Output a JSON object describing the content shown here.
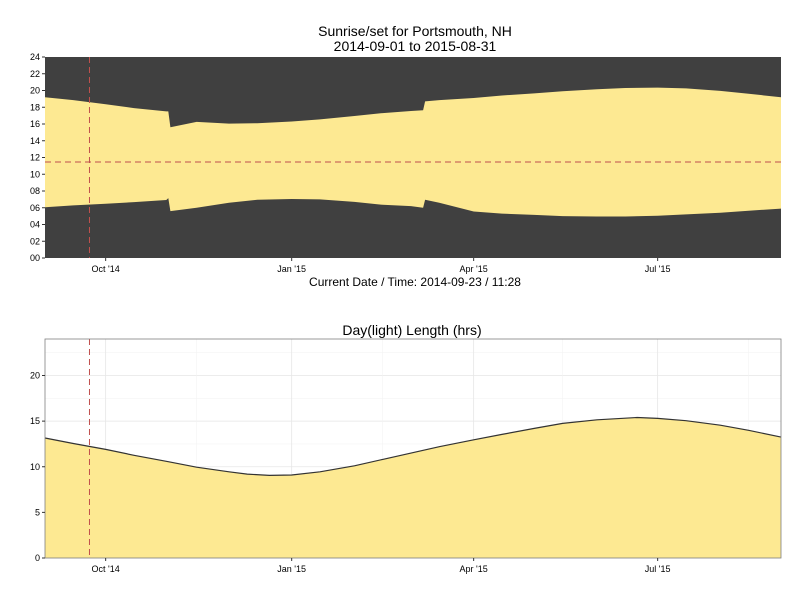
{
  "chart_data": [
    {
      "type": "area",
      "title": "Sunrise/set for Portsmouth, NH",
      "subtitle": "2014-09-01 to 2015-08-31",
      "xlabel": "Current Date / Time: 2014-09-23 / 11:28",
      "ylabel": "",
      "xlim": [
        "2014-09-01",
        "2015-08-31"
      ],
      "ylim": [
        0,
        24
      ],
      "y_ticks": [
        "00",
        "02",
        "04",
        "06",
        "08",
        "10",
        "12",
        "14",
        "16",
        "18",
        "20",
        "22",
        "24"
      ],
      "x_ticks": [
        {
          "date": "2014-10-01",
          "label": "Oct '14"
        },
        {
          "date": "2015-01-01",
          "label": "Jan '15"
        },
        {
          "date": "2015-04-01",
          "label": "Apr '15"
        },
        {
          "date": "2015-07-01",
          "label": "Jul '15"
        }
      ],
      "current_date": "2014-09-23",
      "current_time_hours": 11.47,
      "colors": {
        "night": "#404040",
        "day": "#fde992",
        "marker": "#c0504d"
      },
      "series": [
        {
          "x": [
            "2014-09-01",
            "2014-09-15",
            "2014-10-01",
            "2014-10-15",
            "2014-10-31",
            "2014-11-01",
            "2014-11-02",
            "2014-11-15",
            "2014-12-01",
            "2014-12-15",
            "2015-01-01",
            "2015-01-15",
            "2015-02-01",
            "2015-02-15",
            "2015-03-01",
            "2015-03-07",
            "2015-03-08",
            "2015-03-15",
            "2015-04-01",
            "2015-04-15",
            "2015-05-01",
            "2015-05-15",
            "2015-06-01",
            "2015-06-15",
            "2015-07-01",
            "2015-07-15",
            "2015-08-01",
            "2015-08-15",
            "2015-08-31"
          ],
          "sunrise": [
            6.07,
            6.28,
            6.48,
            6.68,
            6.92,
            7.15,
            5.6,
            6.0,
            6.6,
            6.95,
            7.05,
            7.0,
            6.7,
            6.35,
            6.2,
            6.0,
            6.95,
            6.6,
            5.55,
            5.3,
            5.15,
            5.0,
            4.95,
            4.95,
            5.05,
            5.2,
            5.4,
            5.65,
            5.9
          ],
          "sunset": [
            19.2,
            18.85,
            18.35,
            17.9,
            17.5,
            17.5,
            15.6,
            16.25,
            16.05,
            16.1,
            16.3,
            16.55,
            16.95,
            17.3,
            17.55,
            17.65,
            18.7,
            18.85,
            19.1,
            19.4,
            19.65,
            19.9,
            20.15,
            20.3,
            20.35,
            20.25,
            19.95,
            19.6,
            19.2
          ]
        }
      ]
    },
    {
      "type": "area",
      "title": "Day(light) Length (hrs)",
      "xlabel": "",
      "ylabel": "",
      "xlim": [
        "2014-09-01",
        "2015-08-31"
      ],
      "ylim": [
        0,
        24
      ],
      "y_ticks": [
        "0",
        "5",
        "10",
        "15",
        "20"
      ],
      "x_ticks": [
        {
          "date": "2014-10-01",
          "label": "Oct '14"
        },
        {
          "date": "2015-01-01",
          "label": "Jan '15"
        },
        {
          "date": "2015-04-01",
          "label": "Apr '15"
        },
        {
          "date": "2015-07-01",
          "label": "Jul '15"
        }
      ],
      "current_date": "2014-09-23",
      "grid": true,
      "colors": {
        "fill": "#fde992",
        "line": "#333333",
        "marker": "#c0504d"
      },
      "series": [
        {
          "x": [
            "2014-09-01",
            "2014-09-15",
            "2014-10-01",
            "2014-10-15",
            "2014-11-01",
            "2014-11-15",
            "2014-12-01",
            "2014-12-10",
            "2014-12-21",
            "2015-01-01",
            "2015-01-15",
            "2015-02-01",
            "2015-02-15",
            "2015-03-01",
            "2015-03-15",
            "2015-04-01",
            "2015-04-15",
            "2015-05-01",
            "2015-05-15",
            "2015-06-01",
            "2015-06-21",
            "2015-07-01",
            "2015-07-15",
            "2015-08-01",
            "2015-08-15",
            "2015-08-31"
          ],
          "values": [
            13.15,
            12.55,
            11.9,
            11.25,
            10.55,
            9.95,
            9.45,
            9.2,
            9.05,
            9.1,
            9.45,
            10.1,
            10.8,
            11.5,
            12.2,
            12.95,
            13.55,
            14.2,
            14.75,
            15.15,
            15.4,
            15.3,
            15.05,
            14.55,
            14.0,
            13.25
          ]
        }
      ]
    }
  ]
}
